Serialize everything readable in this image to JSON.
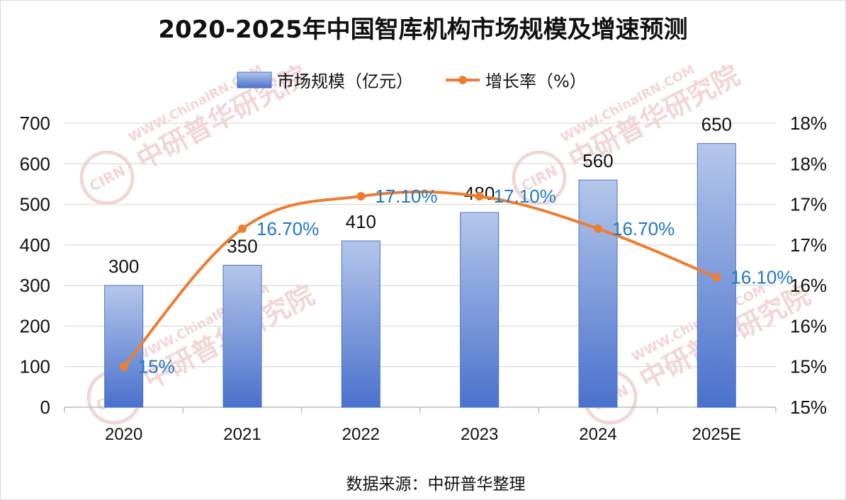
{
  "chart_data": {
    "type": "bar",
    "title": "2020-2025年中国智库机构市场规模及增速预测",
    "categories": [
      "2020",
      "2021",
      "2022",
      "2023",
      "2024",
      "2025E"
    ],
    "series": [
      {
        "name": "市场规模（亿元）",
        "type": "bar",
        "axis": "left",
        "values": [
          300,
          350,
          410,
          480,
          560,
          650
        ],
        "labels": [
          "300",
          "350",
          "410",
          "480",
          "560",
          "650"
        ],
        "color_top": "#b4c6ea",
        "color_bottom": "#4a72cc"
      },
      {
        "name": "增长率（%）",
        "type": "line",
        "axis": "right",
        "values": [
          15.0,
          16.7,
          17.1,
          17.1,
          16.7,
          16.1
        ],
        "labels": [
          "15%",
          "16.70%",
          "17.10%",
          "17.10%",
          "16.70%",
          "16.10%"
        ],
        "color": "#ed7d31",
        "label_color": "#1f78c8"
      }
    ],
    "y_left": {
      "min": 0,
      "max": 700,
      "ticks": [
        0,
        100,
        200,
        300,
        400,
        500,
        600,
        700
      ],
      "tick_labels": [
        "0",
        "100",
        "200",
        "300",
        "400",
        "500",
        "600",
        "700"
      ]
    },
    "y_right": {
      "min": 14.5,
      "max": 18.0,
      "ticks": [
        14.5,
        15.0,
        15.5,
        16.0,
        16.5,
        17.0,
        17.5,
        18.0
      ],
      "tick_labels": [
        "15%",
        "15%",
        "16%",
        "16%",
        "17%",
        "17%",
        "18%",
        "18%"
      ]
    },
    "grid": "horizontal",
    "legend": "top"
  },
  "source_note": "数据来源：中研普华整理",
  "watermark": {
    "badge": "CIRN",
    "name": "中研普华研究院",
    "url": "WWW.ChinaIRN.COM",
    "color": "#e8b4b4"
  }
}
